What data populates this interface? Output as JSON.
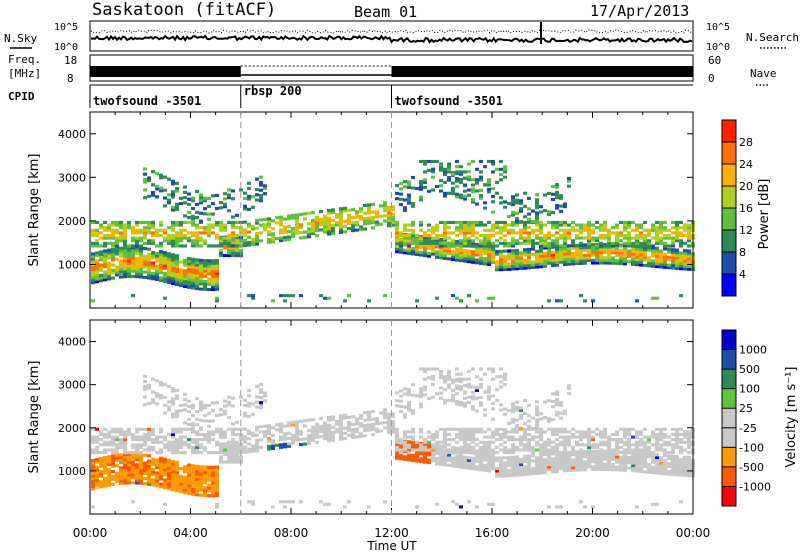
{
  "header": {
    "station": "Saskatoon (fitACF)",
    "beam": "Beam 01",
    "date": "17/Apr/2013"
  },
  "left_labels": {
    "nsky": "N.Sky",
    "freq_line1": "Freq.",
    "freq_line2": "[MHz]",
    "cpid": "CPID"
  },
  "right_labels": {
    "nsearch": "N.Search",
    "nave": "Nave"
  },
  "top_panels": {
    "noise": {
      "left_ticks": [
        "10^5",
        "10^0"
      ],
      "right_ticks": [
        "10^5",
        "10^0"
      ]
    },
    "freq": {
      "left_ticks": [
        "18",
        "8"
      ],
      "right_ticks": [
        "60",
        "0"
      ]
    }
  },
  "cpid_segments": [
    {
      "label": "twofsound -3501",
      "start": 0,
      "end": 6
    },
    {
      "label": "rbsp 200",
      "start": 6,
      "end": 12
    },
    {
      "label": "twofsound -3501",
      "start": 12,
      "end": 24
    }
  ],
  "chart_data": [
    {
      "type": "heatmap",
      "panel": "power",
      "xlabel": "Time UT",
      "ylabel": "Slant Range [km]",
      "xlim": [
        0,
        24
      ],
      "ylim": [
        0,
        4500
      ],
      "xticks": [
        "00:00",
        "04:00",
        "08:00",
        "12:00",
        "16:00",
        "20:00",
        "00:00"
      ],
      "yticks": [
        1000,
        2000,
        3000,
        4000
      ],
      "colorbar": {
        "label": "Power [dB]",
        "ticks": [
          4,
          8,
          12,
          16,
          20,
          24,
          28
        ],
        "range": [
          0,
          32
        ]
      }
    },
    {
      "type": "heatmap",
      "panel": "velocity",
      "xlabel": "Time UT",
      "ylabel": "Slant Range [km]",
      "xlim": [
        0,
        24
      ],
      "ylim": [
        0,
        4500
      ],
      "xticks": [
        "00:00",
        "04:00",
        "08:00",
        "12:00",
        "16:00",
        "20:00",
        "00:00"
      ],
      "yticks": [
        1000,
        2000,
        3000,
        4000
      ],
      "colorbar": {
        "label": "Velocity [m s⁻¹]",
        "ticks": [
          1000,
          500,
          100,
          25,
          -25,
          -100,
          -500,
          -1000
        ]
      }
    }
  ],
  "colors": {
    "power_scale": [
      "#0000ff",
      "#1f4fa8",
      "#2e8b57",
      "#5fbf3f",
      "#b0d020",
      "#ffb000",
      "#ff7000",
      "#ff2000"
    ],
    "velocity_scale": [
      "#ff0000",
      "#ff5a00",
      "#ff9a00",
      "#c8c8c8",
      "#c8c8c8",
      "#5ac83a",
      "#2e8b57",
      "#1f4fa8",
      "#0000d0"
    ]
  }
}
